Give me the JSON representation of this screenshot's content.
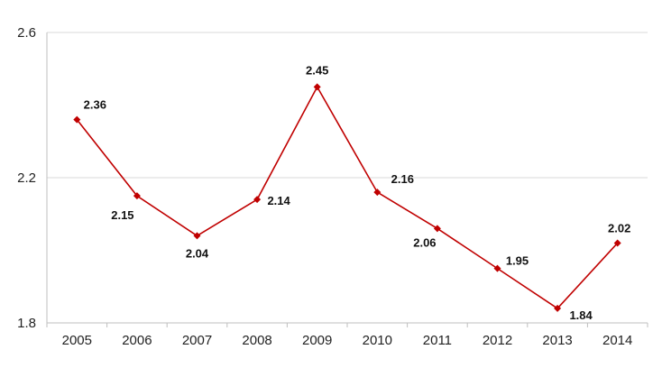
{
  "chart_data": {
    "type": "line",
    "title": "",
    "xlabel": "",
    "ylabel": "",
    "categories": [
      "2005",
      "2006",
      "2007",
      "2008",
      "2009",
      "2010",
      "2011",
      "2012",
      "2013",
      "2014"
    ],
    "series": [
      {
        "values": [
          2.36,
          2.15,
          2.04,
          2.14,
          2.45,
          2.16,
          2.06,
          1.95,
          1.84,
          2.02
        ]
      }
    ],
    "data_labels": [
      "2.36",
      "2.15",
      "2.04",
      "2.14",
      "2.45",
      "2.16",
      "2.06",
      "1.95",
      "1.84",
      "2.02"
    ],
    "ylim": [
      1.8,
      2.6
    ],
    "yticks": [
      "1.8",
      "2.2",
      "2.6"
    ],
    "grid": true,
    "legend": "none",
    "colors": {
      "series": "#c00000",
      "grid": "#d9d9d9"
    }
  }
}
